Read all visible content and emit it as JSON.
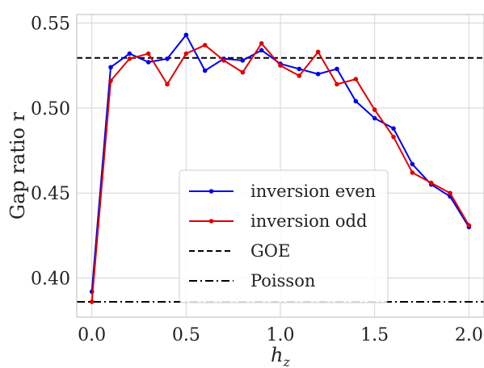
{
  "chart_data": {
    "type": "line",
    "xlabel_main": "h",
    "xlabel_sub": "z",
    "ylabel": "Gap ratio r",
    "xlim": [
      -0.08,
      2.08
    ],
    "ylim": [
      0.377,
      0.555
    ],
    "xticks": [
      0.0,
      0.5,
      1.0,
      1.5,
      2.0
    ],
    "xtick_labels": [
      "0.0",
      "0.5",
      "1.0",
      "1.5",
      "2.0"
    ],
    "yticks": [
      0.4,
      0.45,
      0.5,
      0.55
    ],
    "ytick_labels": [
      "0.40",
      "0.45",
      "0.50",
      "0.55"
    ],
    "grid": true,
    "legend_position": "lower-center",
    "x": [
      0.0,
      0.1,
      0.2,
      0.3,
      0.4,
      0.5,
      0.6,
      0.7,
      0.8,
      0.9,
      1.0,
      1.1,
      1.2,
      1.3,
      1.4,
      1.5,
      1.6,
      1.7,
      1.8,
      1.9,
      2.0
    ],
    "series": [
      {
        "name": "inversion even",
        "color": "#0000ee",
        "values": [
          0.392,
          0.524,
          0.532,
          0.527,
          0.529,
          0.543,
          0.522,
          0.529,
          0.528,
          0.534,
          0.526,
          0.523,
          0.52,
          0.523,
          0.504,
          0.494,
          0.488,
          0.467,
          0.455,
          0.448,
          0.43
        ]
      },
      {
        "name": "inversion odd",
        "color": "#e00000",
        "values": [
          0.386,
          0.516,
          0.529,
          0.532,
          0.514,
          0.532,
          0.537,
          0.528,
          0.521,
          0.538,
          0.525,
          0.519,
          0.533,
          0.514,
          0.517,
          0.499,
          0.483,
          0.462,
          0.456,
          0.45,
          0.431
        ]
      }
    ],
    "reference_lines": [
      {
        "name": "GOE",
        "value": 0.5295,
        "style": "dashed",
        "color": "#000000"
      },
      {
        "name": "Poisson",
        "value": 0.386,
        "style": "dashdot",
        "color": "#000000"
      }
    ]
  }
}
